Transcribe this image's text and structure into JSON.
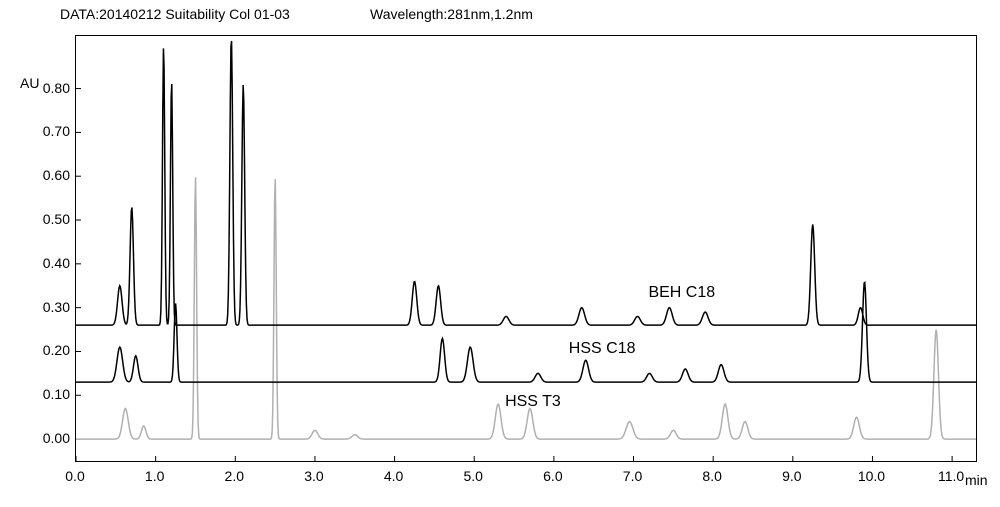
{
  "header": {
    "data_label": "DATA:20140212 Suitability Col 01-03",
    "wavelength_label": "Wavelength:281nm,1.2nm"
  },
  "chart": {
    "type": "line",
    "background_color": "#ffffff",
    "border_color": "#000000",
    "xlim": [
      0.0,
      11.3
    ],
    "ylim": [
      -0.05,
      0.92
    ],
    "x_ticks": [
      0.0,
      1.0,
      2.0,
      3.0,
      4.0,
      5.0,
      6.0,
      7.0,
      8.0,
      9.0,
      10.0,
      11.0
    ],
    "y_ticks": [
      0.0,
      0.1,
      0.2,
      0.3,
      0.4,
      0.5,
      0.6,
      0.7,
      0.8
    ],
    "y_axis_label": "AU",
    "x_axis_label": "min",
    "label_fontsize": 14,
    "series": [
      {
        "name": "BEH C18",
        "color": "#000000",
        "line_width": 1.5,
        "baseline": 0.26,
        "label_x": 7.2,
        "label_y": 0.33,
        "peaks": [
          {
            "x": 0.55,
            "height": 0.09,
            "width": 0.08
          },
          {
            "x": 0.7,
            "height": 0.27,
            "width": 0.06
          },
          {
            "x": 1.1,
            "height": 0.64,
            "width": 0.04
          },
          {
            "x": 1.2,
            "height": 0.56,
            "width": 0.04
          },
          {
            "x": 1.95,
            "height": 0.66,
            "width": 0.05
          },
          {
            "x": 2.1,
            "height": 0.55,
            "width": 0.05
          },
          {
            "x": 4.25,
            "height": 0.1,
            "width": 0.08
          },
          {
            "x": 4.55,
            "height": 0.09,
            "width": 0.08
          },
          {
            "x": 5.4,
            "height": 0.02,
            "width": 0.1
          },
          {
            "x": 6.35,
            "height": 0.04,
            "width": 0.1
          },
          {
            "x": 7.05,
            "height": 0.02,
            "width": 0.1
          },
          {
            "x": 7.45,
            "height": 0.04,
            "width": 0.1
          },
          {
            "x": 7.9,
            "height": 0.03,
            "width": 0.1
          },
          {
            "x": 9.25,
            "height": 0.23,
            "width": 0.07
          },
          {
            "x": 9.85,
            "height": 0.04,
            "width": 0.08
          }
        ]
      },
      {
        "name": "HSS C18",
        "color": "#000000",
        "line_width": 1.5,
        "baseline": 0.13,
        "label_x": 6.2,
        "label_y": 0.2,
        "peaks": [
          {
            "x": 0.55,
            "height": 0.08,
            "width": 0.1
          },
          {
            "x": 0.75,
            "height": 0.06,
            "width": 0.08
          },
          {
            "x": 1.25,
            "height": 0.18,
            "width": 0.05
          },
          {
            "x": 4.6,
            "height": 0.1,
            "width": 0.08
          },
          {
            "x": 4.95,
            "height": 0.08,
            "width": 0.1
          },
          {
            "x": 5.8,
            "height": 0.02,
            "width": 0.1
          },
          {
            "x": 6.4,
            "height": 0.05,
            "width": 0.1
          },
          {
            "x": 7.2,
            "height": 0.02,
            "width": 0.1
          },
          {
            "x": 7.65,
            "height": 0.03,
            "width": 0.1
          },
          {
            "x": 8.1,
            "height": 0.04,
            "width": 0.1
          },
          {
            "x": 9.9,
            "height": 0.23,
            "width": 0.07
          }
        ]
      },
      {
        "name": "HSS T3",
        "color": "#b0b0b0",
        "line_width": 1.5,
        "baseline": 0.0,
        "label_x": 5.4,
        "label_y": 0.08,
        "peaks": [
          {
            "x": 0.62,
            "height": 0.07,
            "width": 0.1
          },
          {
            "x": 0.85,
            "height": 0.03,
            "width": 0.08
          },
          {
            "x": 1.5,
            "height": 0.6,
            "width": 0.04
          },
          {
            "x": 2.5,
            "height": 0.6,
            "width": 0.04
          },
          {
            "x": 3.0,
            "height": 0.02,
            "width": 0.1
          },
          {
            "x": 3.5,
            "height": 0.01,
            "width": 0.1
          },
          {
            "x": 5.3,
            "height": 0.08,
            "width": 0.1
          },
          {
            "x": 5.7,
            "height": 0.07,
            "width": 0.1
          },
          {
            "x": 6.95,
            "height": 0.04,
            "width": 0.12
          },
          {
            "x": 7.5,
            "height": 0.02,
            "width": 0.1
          },
          {
            "x": 8.15,
            "height": 0.08,
            "width": 0.1
          },
          {
            "x": 8.4,
            "height": 0.04,
            "width": 0.1
          },
          {
            "x": 9.8,
            "height": 0.05,
            "width": 0.1
          },
          {
            "x": 10.8,
            "height": 0.25,
            "width": 0.08
          }
        ]
      }
    ]
  }
}
